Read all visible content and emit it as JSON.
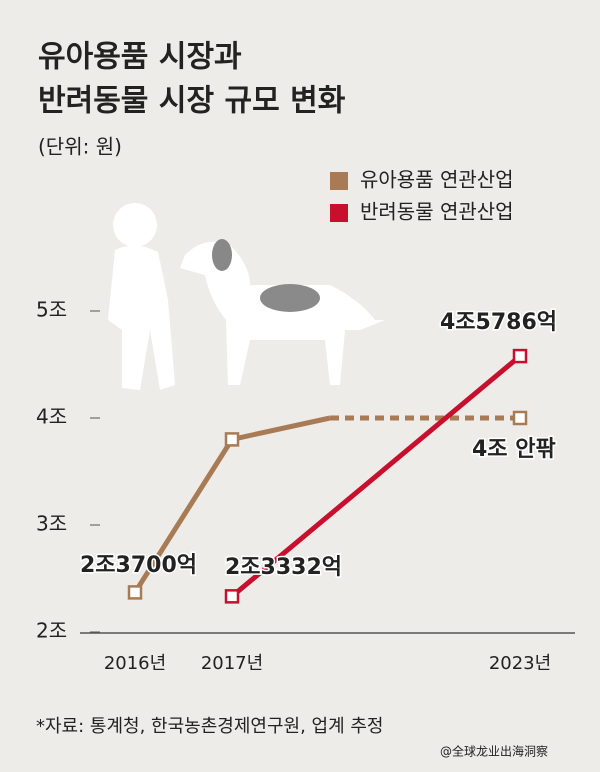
{
  "chart_data": {
    "type": "line",
    "title": [
      "유아용품 시장과",
      "반려동물 시장 규모 변화"
    ],
    "subtitle": "(단위: 원)",
    "categories": [
      "2016년",
      "2017년",
      null,
      "2023년"
    ],
    "ylim": [
      2,
      5
    ],
    "yticks": [
      {
        "value": 2,
        "label": "2조"
      },
      {
        "value": 3,
        "label": "3조"
      },
      {
        "value": 4,
        "label": "4조"
      },
      {
        "value": 5,
        "label": "5조"
      }
    ],
    "series": [
      {
        "name": "유아용품 연관산업",
        "color": "#a87b55",
        "values": [
          2.37,
          3.8,
          4.0,
          4.0
        ],
        "value_labels": [
          "2조3700억",
          null,
          null,
          "4조 안팎"
        ],
        "dashed_last_segment": true
      },
      {
        "name": "반려동물 연관산업",
        "color": "#c8102e",
        "x": [
          "2017년",
          "2023년"
        ],
        "values": [
          2.3332,
          4.5786
        ],
        "value_labels": [
          "2조3332억",
          "4조5786억"
        ]
      }
    ],
    "source": "*자료: 통계청, 한국농촌경제연구원, 업계 추정",
    "watermark": "@全球龙业出海洞察"
  }
}
